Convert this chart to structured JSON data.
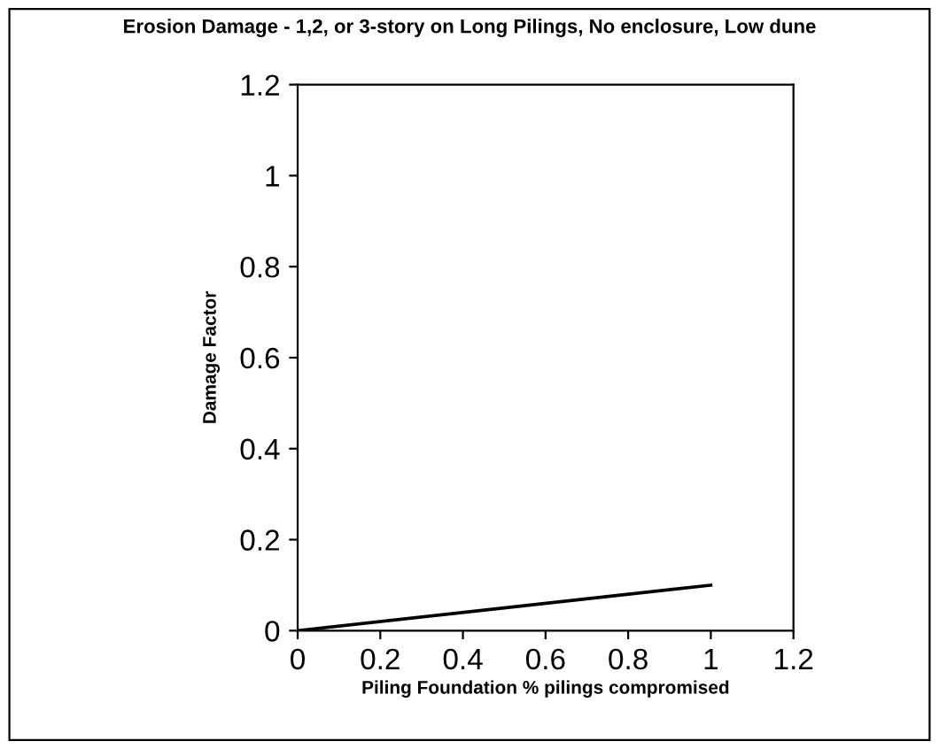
{
  "chart_data": {
    "type": "line",
    "title": "Erosion Damage - 1,2, or 3-story on Long Pilings, No enclosure, Low dune",
    "xlabel": "Piling Foundation % pilings compromised",
    "ylabel": "Damage Factor",
    "x": [
      0,
      0.5,
      1
    ],
    "series": [
      {
        "color": "#000000",
        "values": [
          0,
          0.05,
          0.1
        ]
      }
    ],
    "xlim": [
      0,
      1.2
    ],
    "xticks": [
      0,
      0.2,
      0.4,
      0.6,
      0.8,
      1,
      1.2
    ],
    "ylim": [
      0,
      1.2
    ],
    "yticks": [
      0,
      0.2,
      0.4,
      0.6,
      0.8,
      1,
      1.2
    ],
    "grid": false,
    "legend": false,
    "marker": "none",
    "line_style": "solid"
  }
}
